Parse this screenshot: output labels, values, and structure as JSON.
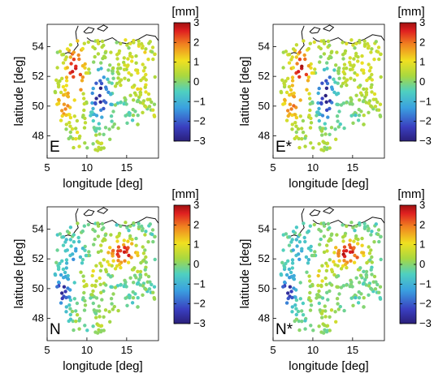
{
  "chart_data": [
    {
      "type": "scatter",
      "panel_label": "E",
      "xlabel": "longitude [deg]",
      "ylabel": "latitude [deg]",
      "xlim": [
        5,
        19
      ],
      "ylim": [
        46.5,
        55.5
      ],
      "xticks": [
        "5",
        "10",
        "15"
      ],
      "yticks": [
        "48",
        "50",
        "52",
        "54"
      ],
      "colorbar": {
        "unit": "[mm]",
        "range": [
          -3,
          3
        ],
        "ticks": [
          "3",
          "2",
          "1",
          "0",
          "−1",
          "−2",
          "−3"
        ]
      },
      "pattern": "east-mm",
      "grid": false
    },
    {
      "type": "scatter",
      "panel_label": "E*",
      "xlabel": "longitude [deg]",
      "ylabel": "latitude [deg]",
      "xlim": [
        5,
        19
      ],
      "ylim": [
        46.5,
        55.5
      ],
      "xticks": [
        "5",
        "10",
        "15"
      ],
      "yticks": [
        "48",
        "50",
        "52",
        "54"
      ],
      "colorbar": {
        "unit": "[mm]",
        "range": [
          -3,
          3
        ],
        "ticks": [
          "3",
          "2",
          "1",
          "0",
          "−1",
          "−2",
          "−3"
        ]
      },
      "pattern": "east-mm",
      "grid": false
    },
    {
      "type": "scatter",
      "panel_label": "N",
      "xlabel": "longitude [deg]",
      "ylabel": "latitude [deg]",
      "xlim": [
        5,
        19
      ],
      "ylim": [
        46.5,
        55.5
      ],
      "xticks": [
        "5",
        "10",
        "15"
      ],
      "yticks": [
        "48",
        "50",
        "52",
        "54"
      ],
      "colorbar": {
        "unit": "[mm]",
        "range": [
          -3,
          3
        ],
        "ticks": [
          "3",
          "2",
          "1",
          "0",
          "−1",
          "−2",
          "−3"
        ]
      },
      "pattern": "north-mm",
      "grid": false
    },
    {
      "type": "scatter",
      "panel_label": "N*",
      "xlabel": "longitude [deg]",
      "ylabel": "latitude [deg]",
      "xlim": [
        5,
        19
      ],
      "ylim": [
        46.5,
        55.5
      ],
      "xticks": [
        "5",
        "10",
        "15"
      ],
      "yticks": [
        "48",
        "50",
        "52",
        "54"
      ],
      "colorbar": {
        "unit": "[mm]",
        "range": [
          -3,
          3
        ],
        "ticks": [
          "3",
          "2",
          "1",
          "0",
          "−1",
          "−2",
          "−3"
        ]
      },
      "pattern": "north-mm",
      "grid": false
    }
  ]
}
